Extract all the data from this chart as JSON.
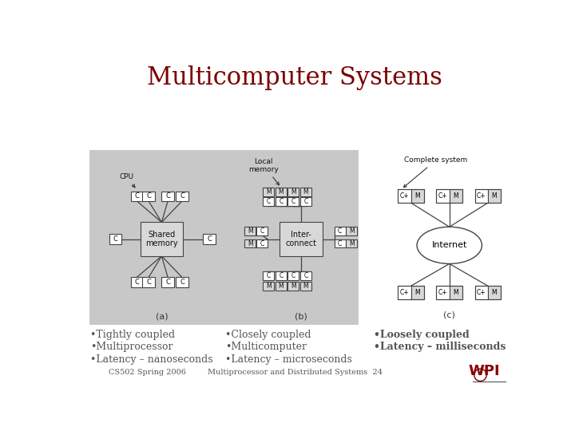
{
  "title": "Multicomputer Systems",
  "title_color": "#7B0000",
  "title_fontsize": 22,
  "bg_color": "#ffffff",
  "gray_panel_color": "#c8c8c8",
  "box_fill_light": "#d8d8d8",
  "box_fill_white": "#ffffff",
  "line_color": "#444444",
  "col1_bullets": [
    "•Tightly coupled",
    "•Multiprocessor",
    "•Latency – nanoseconds"
  ],
  "col2_bullets": [
    "•Closely coupled",
    "•Multicomputer",
    "•Latency – microseconds"
  ],
  "col3_bullets": [
    "•Loosely coupled",
    "•Latency – milliseconds"
  ],
  "footer_left": "CS502 Spring 2006",
  "footer_center": "Multiprocessor and Distributed Systems  24",
  "bullet_fontsize": 9,
  "footer_fontsize": 7,
  "label_fontsize": 6.5,
  "anno_fontsize": 6.5
}
